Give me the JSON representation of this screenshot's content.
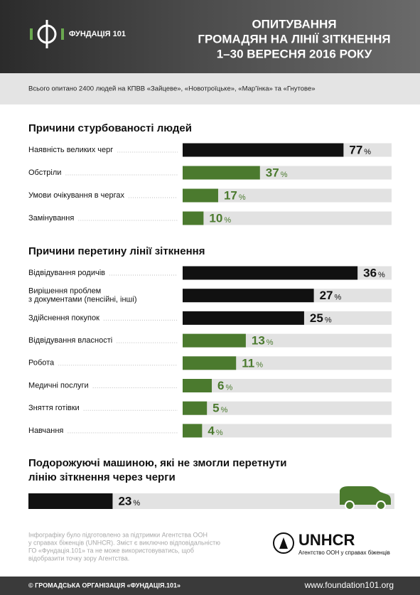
{
  "header": {
    "logo": "ФУНДАЦІЯ 101",
    "title": [
      "ОПИТУВАННЯ",
      "ГРОМАДЯН НА ЛІНІЇ ЗІТКНЕННЯ",
      "1–30 ВЕРЕСНЯ 2016 РОКУ"
    ],
    "subtitle": "Всього опитано 2400 людей на КПВВ «Зайцеве», «Новотроїцьке», «Мар'їнка» та «Гнутове»"
  },
  "chart_data": [
    {
      "type": "bar",
      "title": [
        "Причини стурбованості людей"
      ],
      "categories": [
        [
          "Наявність великих черг"
        ],
        [
          "Обстріли"
        ],
        [
          "Умови очікування в чергах"
        ],
        [
          "Замінування"
        ]
      ],
      "values": [
        77,
        37,
        17,
        10
      ],
      "colors": [
        "#111111",
        "#4b7a2e",
        "#4b7a2e",
        "#4b7a2e"
      ],
      "unit": "%",
      "xlim": [
        0,
        100
      ]
    },
    {
      "type": "bar",
      "title": [
        "Причини перетину лінії зіткнення"
      ],
      "categories": [
        [
          "Відвідування родичів"
        ],
        [
          "Вирішення проблем",
          "з документами (пенсійні, інші)"
        ],
        [
          "Здійснення покупок"
        ],
        [
          "Відвідування власності"
        ],
        [
          "Робота"
        ],
        [
          "Медичні послуги"
        ],
        [
          "Зняття готівки"
        ],
        [
          "Навчання"
        ]
      ],
      "values": [
        36,
        27,
        25,
        13,
        11,
        6,
        5,
        4
      ],
      "colors": [
        "#111111",
        "#111111",
        "#111111",
        "#4b7a2e",
        "#4b7a2e",
        "#4b7a2e",
        "#4b7a2e",
        "#4b7a2e"
      ],
      "unit": "%",
      "xlim": [
        0,
        43
      ]
    },
    {
      "type": "bar",
      "title": [
        "Подорожуючі машиною, які не змогли перетнути",
        "лінію зіткнення через черги"
      ],
      "values": [
        23
      ],
      "colors": [
        "#111111"
      ],
      "unit": "%",
      "xlim": [
        0,
        100
      ]
    }
  ],
  "footer": {
    "note": [
      "Інфографіку було підготовлено за підтримки Агентства ООН",
      "у справах біженців (UNHCR). Зміст є виключно відповідальністю",
      "ГО «Фундація.101» та не може використовуватись, щоб",
      "відобразити точку зору Агентства."
    ],
    "unhcr": "UNHCR",
    "unhcr_sub": "Агентство ООН у справах біженців",
    "copyright": "© ГРОМАДСЬКА ОРГАНІЗАЦІЯ «ФУНДАЦІЯ.101»",
    "url": "www.foundation101.org"
  }
}
